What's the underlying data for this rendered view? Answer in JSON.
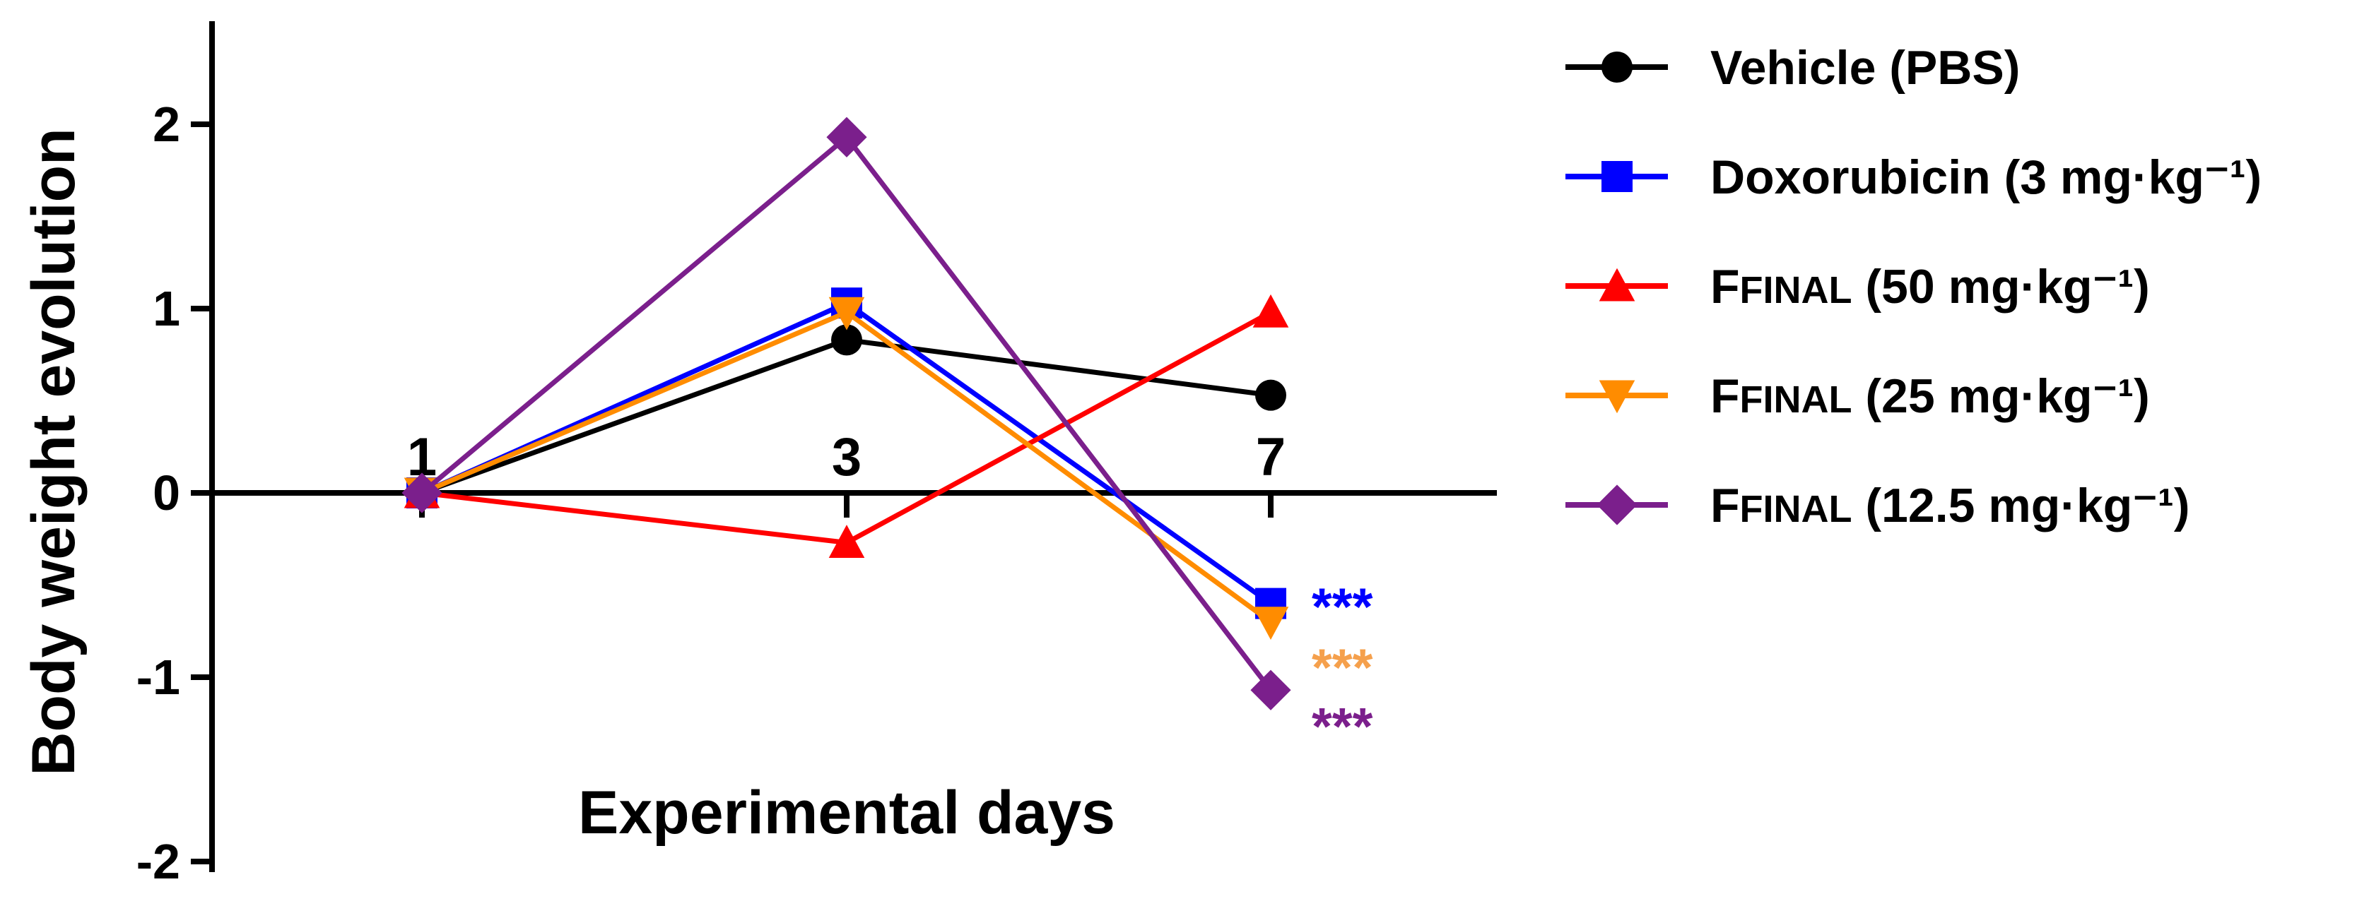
{
  "chart_data": {
    "type": "line",
    "xlabel": "Experimental days",
    "ylabel": "Body weight evolution",
    "x": [
      1,
      3,
      7
    ],
    "x_tick_labels": [
      "1",
      "3",
      "7"
    ],
    "ylim": [
      -2,
      2.5
    ],
    "y_ticks": [
      2,
      1,
      0,
      -1,
      -2
    ],
    "y_tick_labels": [
      "2",
      "1",
      "0",
      "-1",
      "-2"
    ],
    "grid": false,
    "legend_position": "right",
    "series": [
      {
        "name": "Vehicle (PBS)",
        "name_main": "Vehicle (PBS)",
        "name_sub": "",
        "name_dose": "",
        "color": "#000000",
        "marker": "circle",
        "values": [
          0,
          0.83,
          0.53
        ]
      },
      {
        "name": "Doxorubicin (3 mg·kg−1)",
        "name_main": "Doxorubicin",
        "name_sub": "",
        "name_dose": " (3 mg·kg⁻¹)",
        "color": "#0000ff",
        "marker": "square",
        "values": [
          0,
          1.03,
          -0.6
        ]
      },
      {
        "name": "FFINAL (50 mg·kg−1)",
        "name_main": "F",
        "name_sub": "FINAL",
        "name_dose": " (50 mg·kg⁻¹)",
        "color": "#ff0000",
        "marker": "triangle-up",
        "values": [
          0,
          -0.27,
          0.98
        ]
      },
      {
        "name": "FFINAL (25 mg·kg−1)",
        "name_main": "F",
        "name_sub": "FINAL",
        "name_dose": " (25 mg·kg⁻¹)",
        "color": "#ff8c00",
        "marker": "triangle-down",
        "values": [
          0,
          0.98,
          -0.7
        ]
      },
      {
        "name": "FFINAL (12.5 mg·kg−1)",
        "name_main": "F",
        "name_sub": "FINAL",
        "name_dose": " (12.5 mg·kg⁻¹)",
        "color": "#7b1f8c",
        "marker": "diamond",
        "values": [
          0,
          1.93,
          -1.07
        ]
      }
    ],
    "annotations": [
      {
        "text": "***",
        "color": "#0000ff",
        "x": 7,
        "y": -0.53
      },
      {
        "text": "***",
        "color": "#f5a04c",
        "x": 7,
        "y": -0.86
      },
      {
        "text": "***",
        "color": "#7b1f8c",
        "x": 7,
        "y": -1.18
      }
    ]
  }
}
